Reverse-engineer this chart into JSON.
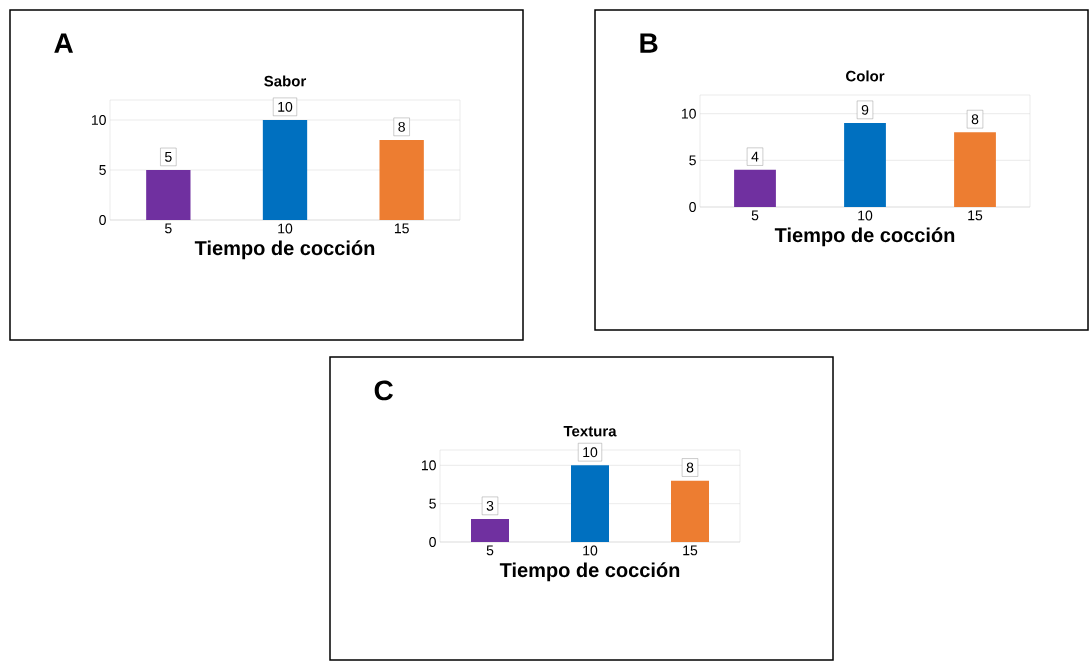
{
  "chart_data": [
    {
      "type": "bar",
      "title": "Sabor",
      "xlabel": "Tiempo de cocción",
      "annotations": [
        "A"
      ],
      "categories": [
        "5",
        "10",
        "15"
      ],
      "values": [
        5,
        10,
        8
      ],
      "colors": [
        "#7030a0",
        "#0070c0",
        "#ed7d31"
      ],
      "ylim": [
        0,
        12
      ],
      "yticks": [
        0,
        5,
        10
      ],
      "grid": "y",
      "data_labels": true
    },
    {
      "type": "bar",
      "title": "Color",
      "xlabel": "Tiempo de cocción",
      "annotations": [
        "B"
      ],
      "categories": [
        "5",
        "10",
        "15"
      ],
      "values": [
        4,
        9,
        8
      ],
      "colors": [
        "#7030a0",
        "#0070c0",
        "#ed7d31"
      ],
      "ylim": [
        0,
        12
      ],
      "yticks": [
        0,
        5,
        10
      ],
      "grid": "y",
      "data_labels": true
    },
    {
      "type": "bar",
      "title": "Textura",
      "xlabel": "Tiempo de cocción",
      "annotations": [
        "C"
      ],
      "categories": [
        "5",
        "10",
        "15"
      ],
      "values": [
        3,
        10,
        8
      ],
      "colors": [
        "#7030a0",
        "#0070c0",
        "#ed7d31"
      ],
      "ylim": [
        0,
        12
      ],
      "yticks": [
        0,
        5,
        10
      ],
      "grid": "y",
      "data_labels": true
    }
  ]
}
